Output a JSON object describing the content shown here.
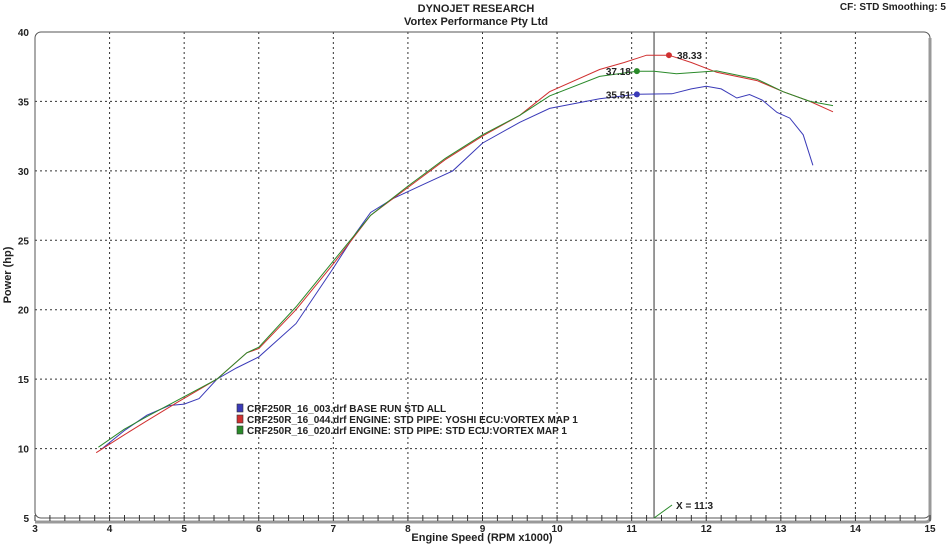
{
  "header": {
    "title": "DYNOJET RESEARCH",
    "subtitle": "Vortex Performance Pty Ltd",
    "settings": "CF: STD  Smoothing: 5"
  },
  "colors": {
    "blue": "#3a3ab8",
    "red": "#d03030",
    "green": "#2a8a2a",
    "grid": "#333333",
    "frame": "#777777"
  },
  "chart_data": {
    "type": "line",
    "title": "DYNOJET RESEARCH",
    "xlabel": "Engine Speed (RPM x1000)",
    "ylabel": "Power (hp)",
    "xlim": [
      3,
      15
    ],
    "ylim": [
      5,
      40
    ],
    "xticks": [
      3,
      4,
      5,
      6,
      7,
      8,
      9,
      10,
      11,
      12,
      13,
      14,
      15
    ],
    "yticks": [
      5,
      10,
      15,
      20,
      25,
      30,
      35,
      40
    ],
    "grid": true,
    "legend_position": "lower-left",
    "cursor": {
      "x": 11.3,
      "label": "X = 11.3"
    },
    "series": [
      {
        "name": "CRF250R_16_003.drf BASE RUN STD ALL",
        "color": "blue",
        "peak": {
          "x": 11.07,
          "y": 35.51,
          "label": "35.51"
        },
        "points": [
          [
            3.9,
            10.0
          ],
          [
            4.2,
            11.3
          ],
          [
            4.5,
            12.4
          ],
          [
            4.8,
            13.1
          ],
          [
            5.0,
            13.2
          ],
          [
            5.2,
            13.6
          ],
          [
            5.44,
            15.0
          ],
          [
            5.7,
            15.8
          ],
          [
            6.0,
            16.6
          ],
          [
            6.5,
            19.0
          ],
          [
            7.0,
            23.0
          ],
          [
            7.3,
            25.5
          ],
          [
            7.5,
            27.0
          ],
          [
            7.8,
            28.0
          ],
          [
            8.2,
            29.0
          ],
          [
            8.6,
            30.0
          ],
          [
            9.0,
            32.0
          ],
          [
            9.5,
            33.5
          ],
          [
            9.9,
            34.5
          ],
          [
            10.57,
            35.2
          ],
          [
            11.07,
            35.51
          ],
          [
            11.54,
            35.55
          ],
          [
            11.8,
            35.9
          ],
          [
            12.0,
            36.1
          ],
          [
            12.2,
            35.9
          ],
          [
            12.41,
            35.25
          ],
          [
            12.58,
            35.5
          ],
          [
            12.75,
            35.1
          ],
          [
            12.95,
            34.2
          ],
          [
            13.12,
            33.8
          ],
          [
            13.3,
            32.6
          ],
          [
            13.43,
            30.4
          ]
        ]
      },
      {
        "name": "CRF250R_16_044.drf ENGINE: STD PIPE: YOSHI ECU:VORTEX MAP 1",
        "color": "red",
        "peak": {
          "x": 11.5,
          "y": 38.33,
          "label": "38.33"
        },
        "points": [
          [
            3.82,
            9.7
          ],
          [
            4.2,
            11.0
          ],
          [
            4.5,
            12.0
          ],
          [
            4.9,
            13.3
          ],
          [
            5.44,
            15.0
          ],
          [
            5.84,
            16.9
          ],
          [
            6.0,
            17.2
          ],
          [
            6.5,
            20.0
          ],
          [
            7.0,
            23.3
          ],
          [
            7.5,
            26.8
          ],
          [
            8.0,
            28.8
          ],
          [
            8.5,
            30.8
          ],
          [
            9.0,
            32.5
          ],
          [
            9.5,
            34.0
          ],
          [
            9.9,
            35.7
          ],
          [
            10.57,
            37.3
          ],
          [
            10.9,
            37.8
          ],
          [
            11.2,
            38.33
          ],
          [
            11.5,
            38.33
          ],
          [
            11.8,
            37.8
          ],
          [
            12.14,
            37.1
          ],
          [
            12.68,
            36.5
          ],
          [
            13.03,
            35.7
          ],
          [
            13.39,
            35.0
          ],
          [
            13.7,
            34.25
          ]
        ]
      },
      {
        "name": "CRF250R_16_020.drf ENGINE: STD PIPE: STD ECU:VORTEX MAP 1",
        "color": "green",
        "peak": {
          "x": 11.07,
          "y": 37.18,
          "label": "37.18"
        },
        "points": [
          [
            3.85,
            10.1
          ],
          [
            4.2,
            11.4
          ],
          [
            4.5,
            12.3
          ],
          [
            4.9,
            13.45
          ],
          [
            5.44,
            15.0
          ],
          [
            5.84,
            16.9
          ],
          [
            6.0,
            17.3
          ],
          [
            6.5,
            20.2
          ],
          [
            7.0,
            23.5
          ],
          [
            7.5,
            26.8
          ],
          [
            8.0,
            28.9
          ],
          [
            8.5,
            30.9
          ],
          [
            9.0,
            32.6
          ],
          [
            9.5,
            34.0
          ],
          [
            9.9,
            35.4
          ],
          [
            10.57,
            36.8
          ],
          [
            11.07,
            37.18
          ],
          [
            11.3,
            37.18
          ],
          [
            11.6,
            37.0
          ],
          [
            12.14,
            37.2
          ],
          [
            12.68,
            36.6
          ],
          [
            13.03,
            35.7
          ],
          [
            13.39,
            35.0
          ],
          [
            13.7,
            34.7
          ]
        ]
      }
    ]
  }
}
